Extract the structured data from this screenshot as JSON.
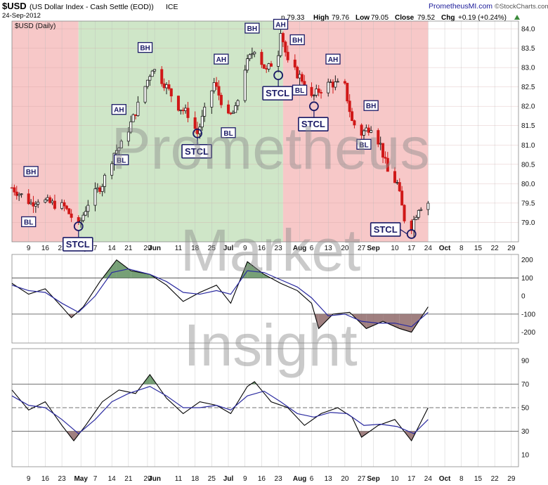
{
  "header": {
    "symbol": "$USD",
    "description": "(US Dollar Index - Cash Settle (EOD))",
    "exchange": "ICE",
    "date": "24-Sep-2012",
    "open": "n 79.33",
    "high_label": "High",
    "high": "79.76",
    "low_label": "Low",
    "low": "79.05",
    "close_label": "Close",
    "close": "79.52",
    "chg_label": "Chg",
    "chg": "+0.19 (+0.24%)",
    "source": "PrometheusMI.com",
    "credit": "©StockCharts.com",
    "panel_label": "$USD (Daily)"
  },
  "watermark": [
    "Prometheus",
    "Market",
    "Insight"
  ],
  "colors": {
    "bear_zone": "#f7c8c8",
    "bull_zone": "#cfe6c8",
    "up_candle": "#1a1a1a",
    "down_candle": "#d01818",
    "indicator": "#000000",
    "signal": "#2a2aa0",
    "positive_fill": "#5f8f5f",
    "negative_fill": "#8f6a6a",
    "annotation": "#1a1a66"
  },
  "chart_data": [
    {
      "type": "candlestick",
      "title": "$USD (Daily)",
      "ylim": [
        78.5,
        84.2
      ],
      "y_ticks": [
        "84.0",
        "83.5",
        "83.0",
        "82.5",
        "82.0",
        "81.5",
        "81.0",
        "80.5",
        "80.0",
        "79.5",
        "79.0"
      ],
      "x_tick_labels": [
        "9",
        "16",
        "23",
        "May",
        "7",
        "14",
        "21",
        "29",
        "Jun",
        "11",
        "18",
        "25",
        "Jul",
        "9",
        "16",
        "23",
        "Aug",
        "6",
        "13",
        "20",
        "27",
        "Sep",
        "10",
        "17",
        "24",
        "Oct",
        "8",
        "15",
        "22",
        "29"
      ],
      "zones": [
        {
          "from": "2012-04-02",
          "to": "2012-04-30",
          "kind": "bearish"
        },
        {
          "from": "2012-04-30",
          "to": "2012-07-25",
          "kind": "bullish"
        },
        {
          "from": "2012-07-25",
          "to": "2012-09-24",
          "kind": "bearish"
        }
      ],
      "close_path": [
        {
          "date": "2012-04-02",
          "close": 79.9
        },
        {
          "date": "2012-04-06",
          "close": 79.7
        },
        {
          "date": "2012-04-10",
          "close": 79.5
        },
        {
          "date": "2012-04-13",
          "close": 79.6
        },
        {
          "date": "2012-04-18",
          "close": 79.5
        },
        {
          "date": "2012-04-24",
          "close": 79.4
        },
        {
          "date": "2012-04-30",
          "close": 78.9
        },
        {
          "date": "2012-05-04",
          "close": 79.5
        },
        {
          "date": "2012-05-10",
          "close": 80.0
        },
        {
          "date": "2012-05-15",
          "close": 80.8
        },
        {
          "date": "2012-05-18",
          "close": 81.0
        },
        {
          "date": "2012-05-23",
          "close": 81.7
        },
        {
          "date": "2012-05-31",
          "close": 83.0
        },
        {
          "date": "2012-06-05",
          "close": 82.6
        },
        {
          "date": "2012-06-11",
          "close": 82.0
        },
        {
          "date": "2012-06-15",
          "close": 81.8
        },
        {
          "date": "2012-06-19",
          "close": 81.3
        },
        {
          "date": "2012-06-26",
          "close": 82.6
        },
        {
          "date": "2012-07-02",
          "close": 81.7
        },
        {
          "date": "2012-07-05",
          "close": 81.9
        },
        {
          "date": "2012-07-09",
          "close": 83.0
        },
        {
          "date": "2012-07-13",
          "close": 83.5
        },
        {
          "date": "2012-07-18",
          "close": 82.9
        },
        {
          "date": "2012-07-23",
          "close": 83.4
        },
        {
          "date": "2012-07-24",
          "close": 84.0
        },
        {
          "date": "2012-07-27",
          "close": 83.1
        },
        {
          "date": "2012-08-02",
          "close": 82.7
        },
        {
          "date": "2012-08-06",
          "close": 82.2
        },
        {
          "date": "2012-08-09",
          "close": 82.4
        },
        {
          "date": "2012-08-14",
          "close": 82.6
        },
        {
          "date": "2012-08-20",
          "close": 82.5
        },
        {
          "date": "2012-08-23",
          "close": 81.6
        },
        {
          "date": "2012-08-27",
          "close": 81.3
        },
        {
          "date": "2012-08-31",
          "close": 81.5
        },
        {
          "date": "2012-09-04",
          "close": 81.0
        },
        {
          "date": "2012-09-07",
          "close": 80.3
        },
        {
          "date": "2012-09-11",
          "close": 80.0
        },
        {
          "date": "2012-09-14",
          "close": 79.1
        },
        {
          "date": "2012-09-17",
          "close": 78.9
        },
        {
          "date": "2012-09-20",
          "close": 79.4
        },
        {
          "date": "2012-09-24",
          "close": 79.52
        }
      ],
      "annotations": [
        {
          "label": "BH",
          "date": "2012-04-10",
          "price": 80.3
        },
        {
          "label": "BL",
          "date": "2012-04-09",
          "price": 79.0
        },
        {
          "label": "STCL",
          "date": "2012-04-30",
          "price": 78.9
        },
        {
          "label": "AH",
          "date": "2012-05-17",
          "price": 81.9
        },
        {
          "label": "BL",
          "date": "2012-05-18",
          "price": 80.6
        },
        {
          "label": "BH",
          "date": "2012-05-28",
          "price": 83.5
        },
        {
          "label": "STCL",
          "date": "2012-06-19",
          "price": 81.3
        },
        {
          "label": "AH",
          "date": "2012-06-29",
          "price": 83.2
        },
        {
          "label": "BL",
          "date": "2012-07-02",
          "price": 81.3
        },
        {
          "label": "BH",
          "date": "2012-07-12",
          "price": 84.0
        },
        {
          "label": "AH",
          "date": "2012-07-24",
          "price": 84.1
        },
        {
          "label": "STCL",
          "date": "2012-07-23",
          "price": 82.8
        },
        {
          "label": "BH",
          "date": "2012-07-31",
          "price": 83.7
        },
        {
          "label": "BL",
          "date": "2012-08-01",
          "price": 82.4
        },
        {
          "label": "STCL",
          "date": "2012-08-07",
          "price": 82.0
        },
        {
          "label": "AH",
          "date": "2012-08-15",
          "price": 83.2
        },
        {
          "label": "BH",
          "date": "2012-08-31",
          "price": 82.0
        },
        {
          "label": "BL",
          "date": "2012-08-28",
          "price": 81.0
        },
        {
          "label": "STCL",
          "date": "2012-09-17",
          "price": 78.7
        }
      ]
    },
    {
      "type": "line",
      "ylim": [
        -260,
        230
      ],
      "y_ticks": [
        "200",
        "100",
        "0",
        "-100",
        "-200"
      ],
      "reference_lines": [
        100,
        -100
      ],
      "series": [
        {
          "name": "",
          "points": [
            {
              "date": "2012-04-02",
              "value": 70
            },
            {
              "date": "2012-04-09",
              "value": 10
            },
            {
              "date": "2012-04-16",
              "value": 40
            },
            {
              "date": "2012-04-23",
              "value": -60
            },
            {
              "date": "2012-04-27",
              "value": -120
            },
            {
              "date": "2012-05-02",
              "value": -60
            },
            {
              "date": "2012-05-09",
              "value": 80
            },
            {
              "date": "2012-05-16",
              "value": 200
            },
            {
              "date": "2012-05-22",
              "value": 140
            },
            {
              "date": "2012-05-30",
              "value": 120
            },
            {
              "date": "2012-06-06",
              "value": 60
            },
            {
              "date": "2012-06-13",
              "value": -30
            },
            {
              "date": "2012-06-20",
              "value": 20
            },
            {
              "date": "2012-06-27",
              "value": 60
            },
            {
              "date": "2012-07-03",
              "value": -40
            },
            {
              "date": "2012-07-10",
              "value": 190
            },
            {
              "date": "2012-07-17",
              "value": 120
            },
            {
              "date": "2012-07-24",
              "value": 70
            },
            {
              "date": "2012-07-31",
              "value": 30
            },
            {
              "date": "2012-08-06",
              "value": -40
            },
            {
              "date": "2012-08-09",
              "value": -180
            },
            {
              "date": "2012-08-15",
              "value": -100
            },
            {
              "date": "2012-08-22",
              "value": -90
            },
            {
              "date": "2012-08-29",
              "value": -180
            },
            {
              "date": "2012-09-05",
              "value": -140
            },
            {
              "date": "2012-09-12",
              "value": -180
            },
            {
              "date": "2012-09-17",
              "value": -200
            },
            {
              "date": "2012-09-24",
              "value": -60
            }
          ]
        },
        {
          "name": "",
          "points": [
            {
              "date": "2012-04-02",
              "value": 60
            },
            {
              "date": "2012-04-09",
              "value": 30
            },
            {
              "date": "2012-04-16",
              "value": 20
            },
            {
              "date": "2012-04-23",
              "value": -40
            },
            {
              "date": "2012-04-30",
              "value": -90
            },
            {
              "date": "2012-05-07",
              "value": 0
            },
            {
              "date": "2012-05-14",
              "value": 130
            },
            {
              "date": "2012-05-21",
              "value": 150
            },
            {
              "date": "2012-05-30",
              "value": 120
            },
            {
              "date": "2012-06-06",
              "value": 80
            },
            {
              "date": "2012-06-13",
              "value": 20
            },
            {
              "date": "2012-06-20",
              "value": 10
            },
            {
              "date": "2012-06-27",
              "value": 30
            },
            {
              "date": "2012-07-03",
              "value": 10
            },
            {
              "date": "2012-07-10",
              "value": 140
            },
            {
              "date": "2012-07-17",
              "value": 130
            },
            {
              "date": "2012-07-24",
              "value": 90
            },
            {
              "date": "2012-07-31",
              "value": 50
            },
            {
              "date": "2012-08-06",
              "value": -10
            },
            {
              "date": "2012-08-13",
              "value": -110
            },
            {
              "date": "2012-08-20",
              "value": -100
            },
            {
              "date": "2012-08-27",
              "value": -140
            },
            {
              "date": "2012-09-03",
              "value": -150
            },
            {
              "date": "2012-09-10",
              "value": -150
            },
            {
              "date": "2012-09-17",
              "value": -170
            },
            {
              "date": "2012-09-24",
              "value": -90
            }
          ]
        }
      ]
    },
    {
      "type": "line",
      "ylim": [
        0,
        100
      ],
      "y_ticks": [
        "90",
        "70",
        "50",
        "30",
        "10"
      ],
      "reference_lines": [
        70,
        50,
        30
      ],
      "series": [
        {
          "name": "",
          "points": [
            {
              "date": "2012-04-02",
              "value": 65
            },
            {
              "date": "2012-04-09",
              "value": 48
            },
            {
              "date": "2012-04-16",
              "value": 55
            },
            {
              "date": "2012-04-23",
              "value": 35
            },
            {
              "date": "2012-04-28",
              "value": 22
            },
            {
              "date": "2012-05-03",
              "value": 35
            },
            {
              "date": "2012-05-10",
              "value": 55
            },
            {
              "date": "2012-05-17",
              "value": 65
            },
            {
              "date": "2012-05-24",
              "value": 62
            },
            {
              "date": "2012-05-30",
              "value": 78
            },
            {
              "date": "2012-06-06",
              "value": 58
            },
            {
              "date": "2012-06-13",
              "value": 45
            },
            {
              "date": "2012-06-20",
              "value": 55
            },
            {
              "date": "2012-06-27",
              "value": 52
            },
            {
              "date": "2012-07-03",
              "value": 45
            },
            {
              "date": "2012-07-10",
              "value": 68
            },
            {
              "date": "2012-07-13",
              "value": 72
            },
            {
              "date": "2012-07-20",
              "value": 55
            },
            {
              "date": "2012-07-27",
              "value": 50
            },
            {
              "date": "2012-08-03",
              "value": 35
            },
            {
              "date": "2012-08-10",
              "value": 45
            },
            {
              "date": "2012-08-17",
              "value": 50
            },
            {
              "date": "2012-08-23",
              "value": 42
            },
            {
              "date": "2012-08-27",
              "value": 25
            },
            {
              "date": "2012-09-03",
              "value": 35
            },
            {
              "date": "2012-09-10",
              "value": 40
            },
            {
              "date": "2012-09-17",
              "value": 22
            },
            {
              "date": "2012-09-24",
              "value": 50
            }
          ]
        },
        {
          "name": "",
          "points": [
            {
              "date": "2012-04-02",
              "value": 60
            },
            {
              "date": "2012-04-09",
              "value": 52
            },
            {
              "date": "2012-04-16",
              "value": 50
            },
            {
              "date": "2012-04-23",
              "value": 40
            },
            {
              "date": "2012-04-30",
              "value": 28
            },
            {
              "date": "2012-05-07",
              "value": 40
            },
            {
              "date": "2012-05-14",
              "value": 55
            },
            {
              "date": "2012-05-21",
              "value": 62
            },
            {
              "date": "2012-05-30",
              "value": 68
            },
            {
              "date": "2012-06-06",
              "value": 60
            },
            {
              "date": "2012-06-13",
              "value": 50
            },
            {
              "date": "2012-06-20",
              "value": 50
            },
            {
              "date": "2012-06-27",
              "value": 52
            },
            {
              "date": "2012-07-03",
              "value": 48
            },
            {
              "date": "2012-07-10",
              "value": 60
            },
            {
              "date": "2012-07-17",
              "value": 64
            },
            {
              "date": "2012-07-24",
              "value": 55
            },
            {
              "date": "2012-07-31",
              "value": 45
            },
            {
              "date": "2012-08-07",
              "value": 42
            },
            {
              "date": "2012-08-14",
              "value": 46
            },
            {
              "date": "2012-08-21",
              "value": 45
            },
            {
              "date": "2012-08-28",
              "value": 35
            },
            {
              "date": "2012-09-04",
              "value": 36
            },
            {
              "date": "2012-09-11",
              "value": 34
            },
            {
              "date": "2012-09-18",
              "value": 28
            },
            {
              "date": "2012-09-24",
              "value": 40
            }
          ]
        }
      ]
    }
  ]
}
